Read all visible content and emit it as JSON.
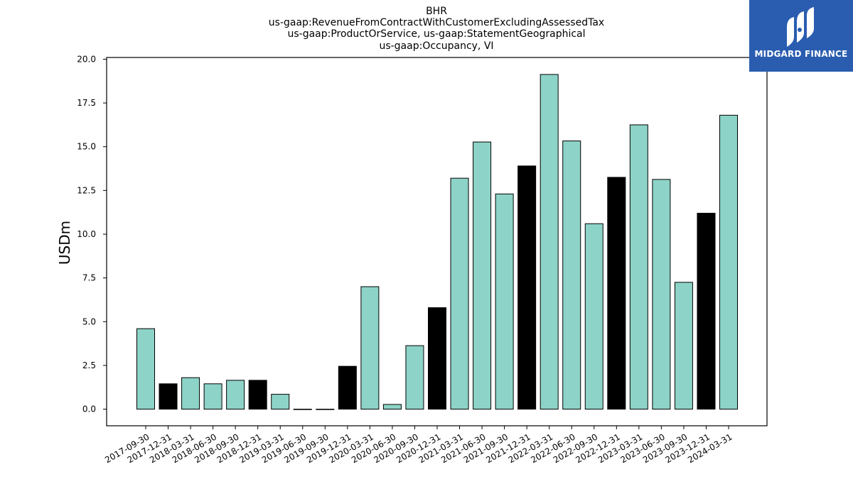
{
  "chart_data": {
    "type": "bar",
    "title_lines": [
      "BHR",
      "us-gaap:RevenueFromContractWithCustomerExcludingAssessedTax",
      "us-gaap:ProductOrService, us-gaap:StatementGeographical",
      "us-gaap:Occupancy, VI"
    ],
    "xlabel": "",
    "ylabel": "USDm",
    "ylim": [
      -0.95,
      20.1
    ],
    "yticks": [
      "0.0",
      "2.5",
      "5.0",
      "7.5",
      "10.0",
      "12.5",
      "15.0",
      "17.5",
      "20.0"
    ],
    "ytick_values": [
      0,
      2.5,
      5,
      7.5,
      10,
      12.5,
      15,
      17.5,
      20
    ],
    "categories": [
      "2017-09-30",
      "2017-12-31",
      "2018-03-31",
      "2018-06-30",
      "2018-09-30",
      "2018-12-31",
      "2019-03-31",
      "2019-06-30",
      "2019-09-30",
      "2019-12-31",
      "2020-03-31",
      "2020-06-30",
      "2020-09-30",
      "2020-12-31",
      "2021-03-31",
      "2021-06-30",
      "2021-09-30",
      "2021-12-31",
      "2022-03-31",
      "2022-06-30",
      "2022-09-30",
      "2022-12-31",
      "2023-03-31",
      "2023-06-30",
      "2023-09-30",
      "2023-12-31",
      "2024-03-31"
    ],
    "values": [
      4.6,
      1.45,
      1.8,
      1.45,
      1.65,
      1.65,
      0.85,
      0.0,
      0.0,
      2.45,
      7.0,
      0.27,
      3.63,
      5.8,
      13.2,
      15.27,
      12.3,
      13.9,
      19.13,
      15.33,
      10.6,
      13.25,
      16.25,
      13.13,
      7.25,
      11.2,
      16.8
    ],
    "colors": {
      "quarter": "#8dd3c7",
      "year_end": "#000000",
      "edge": "#000000"
    },
    "bar_colors": [
      "quarter",
      "year_end",
      "quarter",
      "quarter",
      "quarter",
      "year_end",
      "quarter",
      "quarter",
      "quarter",
      "year_end",
      "quarter",
      "quarter",
      "quarter",
      "year_end",
      "quarter",
      "quarter",
      "quarter",
      "year_end",
      "quarter",
      "quarter",
      "quarter",
      "year_end",
      "quarter",
      "quarter",
      "quarter",
      "year_end",
      "quarter"
    ],
    "grid": false,
    "legend": "none"
  },
  "logo": {
    "text": "MIDGARD FINANCE",
    "background": "#2a5db0",
    "icon": "midgard-logo-icon"
  }
}
